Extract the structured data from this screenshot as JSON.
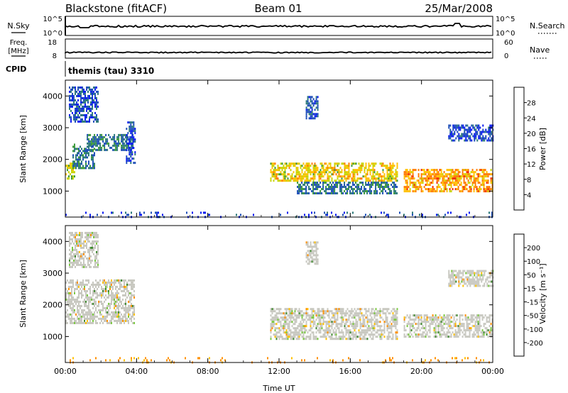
{
  "header": {
    "station": "Blackstone (fitACF)",
    "beam": "Beam 01",
    "date": "25/Mar/2008"
  },
  "strips": {
    "nsky": {
      "label": "N.Sky",
      "tick_top": "10^5",
      "tick_bottom": "10^0"
    },
    "nsearch": {
      "label": "N.Search",
      "tick_top": "10^5",
      "tick_bottom": "10^0"
    },
    "freq": {
      "label_line1": "Freq.",
      "label_line2": "[MHz]",
      "tick_top": "18",
      "tick_bottom": "8"
    },
    "nave": {
      "label": "Nave",
      "tick_top": "60",
      "tick_bottom": "0"
    },
    "cpid": {
      "label": "CPID",
      "value": "themis (tau) 3310"
    }
  },
  "chart_data": [
    {
      "type": "heatmap",
      "name": "power",
      "ylabel": "Slant Range [km]",
      "xlabel": "",
      "x_ticks": [
        "00:00",
        "04:00",
        "08:00",
        "12:00",
        "16:00",
        "20:00",
        "00:00"
      ],
      "y_ticks": [
        "1000",
        "2000",
        "3000",
        "4000"
      ],
      "xlim": [
        0,
        24
      ],
      "ylim": [
        180,
        4500
      ],
      "colorbar": {
        "label": "Power [dB]",
        "ticks": [
          "4",
          "8",
          "12",
          "16",
          "20",
          "24",
          "28"
        ],
        "colors": [
          "#0a1cf0",
          "#1e4fb8",
          "#2d7a7a",
          "#3d9a3a",
          "#c8d400",
          "#ffc000",
          "#ff7a00",
          "#f02800"
        ],
        "range": [
          0,
          32
        ]
      },
      "regions": [
        {
          "t0": 0.0,
          "t1": 0.5,
          "r0": 1400,
          "r1": 1900,
          "v": 18
        },
        {
          "t0": 0.4,
          "t1": 1.6,
          "r0": 1700,
          "r1": 2500,
          "v": 10
        },
        {
          "t0": 1.2,
          "t1": 3.8,
          "r0": 2300,
          "r1": 2800,
          "v": 9
        },
        {
          "t0": 0.2,
          "t1": 1.8,
          "r0": 3200,
          "r1": 4300,
          "v": 6
        },
        {
          "t0": 3.4,
          "t1": 3.9,
          "r0": 1900,
          "r1": 3200,
          "v": 5
        },
        {
          "t0": 11.5,
          "t1": 18.6,
          "r0": 1300,
          "r1": 1900,
          "v": 20
        },
        {
          "t0": 13.0,
          "t1": 18.6,
          "r0": 900,
          "r1": 1300,
          "v": 9
        },
        {
          "t0": 13.5,
          "t1": 14.2,
          "r0": 3300,
          "r1": 4000,
          "v": 6
        },
        {
          "t0": 19.0,
          "t1": 24.0,
          "r0": 1000,
          "r1": 1700,
          "v": 24
        },
        {
          "t0": 21.5,
          "t1": 24.0,
          "r0": 2600,
          "r1": 3100,
          "v": 5
        },
        {
          "t0": 0.0,
          "t1": 24.0,
          "r0": 180,
          "r1": 350,
          "v": 4
        }
      ]
    },
    {
      "type": "heatmap",
      "name": "velocity",
      "ylabel": "Slant Range [km]",
      "xlabel": "Time UT",
      "x_ticks": [
        "00:00",
        "04:00",
        "08:00",
        "12:00",
        "16:00",
        "20:00",
        "00:00"
      ],
      "y_ticks": [
        "1000",
        "2000",
        "3000",
        "4000"
      ],
      "xlim": [
        0,
        24
      ],
      "ylim": [
        180,
        4500
      ],
      "colorbar": {
        "label": "Velocity [m s⁻¹]",
        "ticks": [
          "200",
          "100",
          "50",
          "15",
          "-15",
          "-50",
          "-100",
          "-200"
        ],
        "colors": [
          "#1f3fb8",
          "#2e6a58",
          "#3f8a30",
          "#7ac840",
          "#c8c8c0",
          "#ffc000",
          "#ff9000",
          "#ff5000",
          "#f02000"
        ]
      },
      "regions": [
        {
          "t0": 0.0,
          "t1": 3.9,
          "r0": 1400,
          "r1": 2800,
          "v": 0
        },
        {
          "t0": 0.2,
          "t1": 1.8,
          "r0": 3200,
          "r1": 4300,
          "v": 0
        },
        {
          "t0": 11.5,
          "t1": 18.6,
          "r0": 900,
          "r1": 1900,
          "v": 0
        },
        {
          "t0": 19.0,
          "t1": 24.0,
          "r0": 1000,
          "r1": 1700,
          "v": 0
        },
        {
          "t0": 13.5,
          "t1": 14.2,
          "r0": 3300,
          "r1": 4000,
          "v": 0
        },
        {
          "t0": 21.5,
          "t1": 24.0,
          "r0": 2600,
          "r1": 3100,
          "v": 0
        },
        {
          "t0": 0.0,
          "t1": 24.0,
          "r0": 180,
          "r1": 350,
          "v": -60
        }
      ]
    }
  ]
}
